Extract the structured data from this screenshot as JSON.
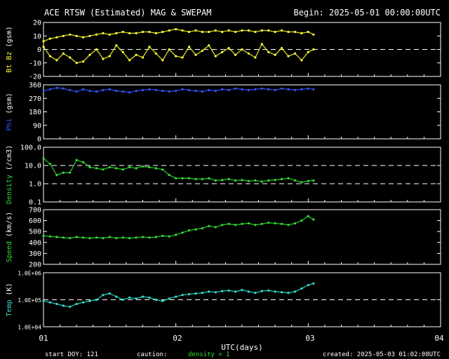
{
  "header": {
    "title": "ACE RTSW (Estimated) MAG & SWEPAM",
    "begin": "Begin: 2025-05-01 00:00:00UTC"
  },
  "footer": {
    "start_doy": "start DOY: 121",
    "caution": "caution:",
    "density_note": "density < 1",
    "created": "created: 2025-05-03 01:02:08UTC"
  },
  "x_axis": {
    "label": "UTC(days)",
    "ticks": [
      "01",
      "02",
      "03",
      "04"
    ],
    "range": [
      1,
      4
    ]
  },
  "colors": {
    "bt_bz": "#ffff33",
    "phi": "#3355ff",
    "density": "#33dd33",
    "speed": "#33dd33",
    "temp": "#33ddcc",
    "density_note": "#33dd33",
    "axes": "#ffffff"
  },
  "chart_data": [
    {
      "type": "line",
      "name": "bt-bz",
      "ylabel": "Bt Bz (gsm)",
      "ylabel_parts": [
        "Bt",
        "Bz",
        "(gsm)"
      ],
      "ylim": [
        -20,
        20
      ],
      "yticks": [
        "20",
        "10",
        "0",
        "-10",
        "-20"
      ],
      "ytick_values": [
        20,
        10,
        0,
        -10,
        -20
      ],
      "reference_lines": [
        0
      ],
      "series": [
        {
          "key": "bt",
          "x": [
            1.0,
            1.05,
            1.1,
            1.15,
            1.2,
            1.25,
            1.3,
            1.35,
            1.4,
            1.45,
            1.5,
            1.55,
            1.6,
            1.65,
            1.7,
            1.75,
            1.8,
            1.85,
            1.9,
            1.95,
            2.0,
            2.05,
            2.1,
            2.15,
            2.2,
            2.25,
            2.3,
            2.35,
            2.4,
            2.45,
            2.5,
            2.55,
            2.6,
            2.65,
            2.7,
            2.75,
            2.8,
            2.85,
            2.9,
            2.95,
            3.0,
            3.04
          ],
          "values": [
            6,
            8,
            9,
            10,
            11,
            10,
            9,
            10,
            11,
            12,
            11,
            12,
            13,
            12,
            12,
            13,
            13,
            12,
            13,
            14,
            15,
            14,
            13,
            14,
            13,
            13,
            14,
            13,
            14,
            13,
            14,
            14,
            13,
            14,
            14,
            13,
            14,
            13,
            13,
            12,
            13,
            11
          ]
        },
        {
          "key": "bz",
          "x": [
            1.0,
            1.05,
            1.1,
            1.15,
            1.2,
            1.25,
            1.3,
            1.35,
            1.4,
            1.45,
            1.5,
            1.55,
            1.6,
            1.65,
            1.7,
            1.75,
            1.8,
            1.85,
            1.9,
            1.95,
            2.0,
            2.05,
            2.1,
            2.15,
            2.2,
            2.25,
            2.3,
            2.35,
            2.4,
            2.45,
            2.5,
            2.55,
            2.6,
            2.65,
            2.7,
            2.75,
            2.8,
            2.85,
            2.9,
            2.95,
            3.0,
            3.04
          ],
          "values": [
            2,
            -5,
            -8,
            -3,
            -6,
            -10,
            -9,
            -4,
            0,
            -7,
            -5,
            3,
            -2,
            -8,
            -4,
            -6,
            2,
            -3,
            -8,
            0,
            -5,
            -6,
            2,
            -4,
            -1,
            3,
            -5,
            -2,
            1,
            -4,
            0,
            -3,
            -6,
            4,
            -2,
            -4,
            1,
            -5,
            -3,
            -8,
            -2,
            0
          ]
        }
      ]
    },
    {
      "type": "scatter",
      "name": "phi",
      "ylabel": "Phi (gsm)",
      "ylabel_parts": [
        "Phi",
        "(gsm)"
      ],
      "ylim": [
        0,
        360
      ],
      "yticks": [
        "360",
        "270",
        "180",
        "90",
        "0"
      ],
      "ytick_values": [
        360,
        270,
        180,
        90,
        0
      ],
      "series": [
        {
          "key": "phi",
          "x": [
            1.0,
            1.05,
            1.1,
            1.15,
            1.2,
            1.25,
            1.3,
            1.35,
            1.4,
            1.45,
            1.5,
            1.55,
            1.6,
            1.65,
            1.7,
            1.75,
            1.8,
            1.85,
            1.9,
            1.95,
            2.0,
            2.05,
            2.1,
            2.15,
            2.2,
            2.25,
            2.3,
            2.35,
            2.4,
            2.45,
            2.5,
            2.55,
            2.6,
            2.65,
            2.7,
            2.75,
            2.8,
            2.85,
            2.9,
            2.95,
            3.0,
            3.04
          ],
          "values": [
            320,
            330,
            340,
            335,
            325,
            315,
            330,
            320,
            315,
            325,
            330,
            320,
            315,
            310,
            320,
            325,
            330,
            325,
            320,
            315,
            320,
            330,
            325,
            320,
            315,
            325,
            320,
            330,
            325,
            335,
            330,
            325,
            330,
            335,
            330,
            325,
            335,
            330,
            325,
            330,
            335,
            330
          ]
        }
      ]
    },
    {
      "type": "scatter",
      "name": "density",
      "ylabel": "Density (/cm3)",
      "ylabel_parts": [
        "Density",
        "(/cm3)"
      ],
      "scale": "log",
      "ylim": [
        0.1,
        100
      ],
      "yticks": [
        "100.0",
        "10.0",
        "1.0",
        "0.1"
      ],
      "ytick_values": [
        100,
        10,
        1,
        0.1
      ],
      "reference_lines": [
        1,
        10
      ],
      "series": [
        {
          "key": "density",
          "x": [
            1.0,
            1.05,
            1.1,
            1.15,
            1.2,
            1.25,
            1.3,
            1.35,
            1.4,
            1.45,
            1.5,
            1.55,
            1.6,
            1.65,
            1.7,
            1.75,
            1.8,
            1.85,
            1.9,
            1.95,
            2.0,
            2.05,
            2.1,
            2.15,
            2.2,
            2.25,
            2.3,
            2.35,
            2.4,
            2.45,
            2.5,
            2.55,
            2.6,
            2.65,
            2.7,
            2.75,
            2.8,
            2.85,
            2.9,
            2.95,
            3.0,
            3.04
          ],
          "values": [
            25,
            12,
            3,
            4,
            4,
            20,
            15,
            8,
            7,
            6,
            8,
            7,
            6,
            8,
            7,
            9,
            8,
            7,
            6,
            3,
            2,
            2,
            2,
            1.8,
            1.8,
            2,
            1.5,
            1.6,
            1.8,
            1.5,
            1.6,
            1.4,
            1.5,
            1.3,
            1.5,
            1.6,
            1.8,
            2,
            1.5,
            1.2,
            1.4,
            1.5
          ]
        }
      ]
    },
    {
      "type": "scatter",
      "name": "speed",
      "ylabel": "Speed (km/s)",
      "ylabel_parts": [
        "Speed",
        "(km/s)"
      ],
      "ylim": [
        200,
        700
      ],
      "yticks": [
        "700",
        "600",
        "500",
        "400",
        "300",
        "200"
      ],
      "ytick_values": [
        700,
        600,
        500,
        400,
        300,
        200
      ],
      "series": [
        {
          "key": "speed",
          "x": [
            1.0,
            1.05,
            1.1,
            1.15,
            1.2,
            1.25,
            1.3,
            1.35,
            1.4,
            1.45,
            1.5,
            1.55,
            1.6,
            1.65,
            1.7,
            1.75,
            1.8,
            1.85,
            1.9,
            1.95,
            2.0,
            2.05,
            2.1,
            2.15,
            2.2,
            2.25,
            2.3,
            2.35,
            2.4,
            2.45,
            2.5,
            2.55,
            2.6,
            2.65,
            2.7,
            2.75,
            2.8,
            2.85,
            2.9,
            2.95,
            3.0,
            3.04
          ],
          "values": [
            460,
            455,
            450,
            445,
            440,
            450,
            445,
            440,
            445,
            440,
            450,
            440,
            445,
            440,
            445,
            450,
            445,
            450,
            460,
            455,
            470,
            490,
            510,
            520,
            530,
            550,
            540,
            560,
            570,
            560,
            570,
            575,
            560,
            570,
            580,
            575,
            570,
            560,
            575,
            600,
            640,
            610
          ]
        }
      ]
    },
    {
      "type": "scatter",
      "name": "temp",
      "ylabel": "Temp (K)",
      "ylabel_parts": [
        "Temp",
        "(K)"
      ],
      "scale": "log",
      "ylim": [
        10000,
        1000000
      ],
      "yticks": [
        "1.0E+06",
        "1.0E+05",
        "1.0E+04"
      ],
      "ytick_values": [
        1000000,
        100000,
        10000
      ],
      "reference_lines": [
        100000
      ],
      "series": [
        {
          "key": "temp",
          "x": [
            1.0,
            1.05,
            1.1,
            1.15,
            1.2,
            1.25,
            1.3,
            1.35,
            1.4,
            1.45,
            1.5,
            1.55,
            1.6,
            1.65,
            1.7,
            1.75,
            1.8,
            1.85,
            1.9,
            1.95,
            2.0,
            2.05,
            2.1,
            2.15,
            2.2,
            2.25,
            2.3,
            2.35,
            2.4,
            2.45,
            2.5,
            2.55,
            2.6,
            2.65,
            2.7,
            2.75,
            2.8,
            2.85,
            2.9,
            2.95,
            3.0,
            3.04
          ],
          "values": [
            90000,
            80000,
            70000,
            60000,
            55000,
            70000,
            80000,
            90000,
            100000,
            150000,
            170000,
            130000,
            100000,
            120000,
            110000,
            130000,
            120000,
            100000,
            90000,
            110000,
            130000,
            150000,
            160000,
            170000,
            180000,
            200000,
            190000,
            210000,
            220000,
            200000,
            230000,
            200000,
            180000,
            210000,
            220000,
            200000,
            190000,
            180000,
            200000,
            260000,
            350000,
            400000
          ]
        }
      ]
    }
  ]
}
